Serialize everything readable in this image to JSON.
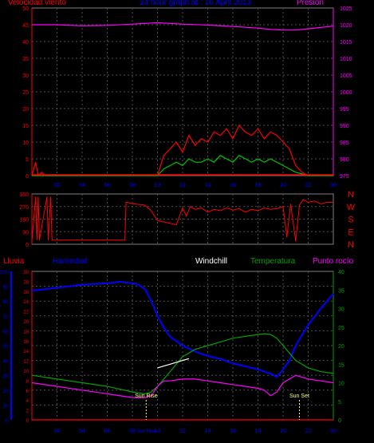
{
  "title": "24 hour graph at : 16 April 2013",
  "panel1": {
    "left_label": "Velocidad viento",
    "right_label": "Presión",
    "left_ticks": [
      "0",
      "5",
      "10",
      "15",
      "20",
      "25",
      "30",
      "35",
      "40",
      "45",
      "50"
    ],
    "right_ticks": [
      "975",
      "980",
      "985",
      "990",
      "995",
      "1000",
      "1005",
      "1010",
      "1015",
      "1020",
      "1025"
    ]
  },
  "panel2": {
    "left_ticks": [
      "0",
      "90",
      "180",
      "270",
      "360"
    ],
    "compass": [
      "N",
      "W",
      "S",
      "E",
      "N"
    ]
  },
  "panel3": {
    "lluvia_label": "Lluvia",
    "humedad_label": "Humedad",
    "windchill_label": "Windchill",
    "temperatura_label": "Temperatura",
    "punto_label": "Punto rocío",
    "hum_ticks": [
      "0",
      "10",
      "20",
      "30",
      "40",
      "50",
      "60",
      "70",
      "80",
      "90",
      "100"
    ],
    "rain_ticks": [
      "0",
      "2",
      "4",
      "6",
      "8",
      "10",
      "12",
      "14",
      "16",
      "18",
      "20",
      "22",
      "24",
      "26",
      "28",
      "30"
    ],
    "temp_ticks": [
      "0",
      "5",
      "10",
      "15",
      "20",
      "25",
      "30",
      "35",
      "40"
    ],
    "sunrise": "Sun Rise",
    "sunset": "Sun Set"
  },
  "x_ticks_top": [
    "02",
    "04",
    "06",
    "08",
    "10",
    "12",
    "14",
    "16",
    "18",
    "20",
    "22",
    "00"
  ],
  "x_ticks_bottom": [
    "02",
    "04",
    "06",
    "08",
    "10",
    "12",
    "14",
    "16",
    "18",
    "20",
    "22",
    "00"
  ],
  "x_tick_bottom_extra": "Sun Rise",
  "colors": {
    "wind": "#ff0000",
    "gust": "#00c000",
    "pressure": "#ff00ff",
    "direction": "#ff0000",
    "humidity": "#0000ff",
    "temperature": "#00a000",
    "windchill": "#ffffff",
    "dewpoint": "#ff00ff",
    "rain": "#ff0000",
    "left_axis": "#ff0000",
    "right_axis": "#ff00ff",
    "title": "#0000ff",
    "hum_axis": "#0000ff",
    "temp_axis": "#00a000",
    "sun": "#ffff80"
  },
  "chart_data": [
    {
      "type": "line",
      "xlim": [
        0,
        24
      ],
      "series": [
        {
          "name": "Velocidad viento",
          "axis": "left",
          "ylim": [
            0,
            50
          ],
          "x": [
            0,
            0.3,
            0.5,
            0.8,
            1.0,
            3,
            5,
            7,
            9,
            10.0,
            10.5,
            11.0,
            11.5,
            12,
            12.5,
            13,
            13.5,
            14,
            14.5,
            15,
            15.5,
            16,
            16.5,
            17,
            17.5,
            18,
            18.5,
            19,
            19.5,
            20,
            20.5,
            21,
            21.5,
            22,
            23,
            24
          ],
          "y": [
            0,
            4,
            0,
            1,
            0,
            0,
            0,
            0,
            0,
            0,
            6,
            8,
            10,
            7,
            12,
            9,
            11,
            10,
            13,
            12,
            14,
            11,
            15,
            13,
            12,
            14,
            11,
            13,
            12,
            10,
            8,
            3,
            1,
            0,
            0,
            0
          ]
        },
        {
          "name": "Racha",
          "axis": "left",
          "ylim": [
            0,
            50
          ],
          "x": [
            0,
            10,
            10.5,
            11,
            11.5,
            12,
            12.5,
            13,
            13.5,
            14,
            14.5,
            15,
            15.5,
            16,
            16.5,
            17,
            17.5,
            18,
            18.5,
            19,
            19.5,
            20,
            20.5,
            21,
            22,
            24
          ],
          "y": [
            0,
            0,
            2,
            3,
            4,
            3,
            5,
            4,
            4,
            5,
            4,
            6,
            5,
            4,
            6,
            5,
            4,
            5,
            4,
            5,
            4,
            3,
            2,
            1,
            0,
            0
          ]
        },
        {
          "name": "Presión",
          "axis": "right",
          "ylim": [
            975,
            1025
          ],
          "x": [
            0,
            2,
            4,
            6,
            8,
            10,
            12,
            14,
            16,
            18,
            19,
            20,
            21,
            22,
            23,
            24
          ],
          "y": [
            1020,
            1020,
            1019.7,
            1019.8,
            1020.2,
            1020.6,
            1020.2,
            1019.9,
            1019.5,
            1019.0,
            1018.6,
            1018.4,
            1018.4,
            1018.8,
            1019.2,
            1019.6
          ]
        }
      ]
    },
    {
      "type": "line",
      "ylim": [
        0,
        360
      ],
      "series": [
        {
          "name": "Dirección viento",
          "x": [
            0,
            0.3,
            0.4,
            0.5,
            0.6,
            1.2,
            1.3,
            1.5,
            1.6,
            2.0,
            3,
            5,
            7,
            7.4,
            7.5,
            7.6,
            8,
            9,
            9.5,
            10,
            10.5,
            11,
            11.5,
            12,
            12.3,
            12.6,
            13,
            13.5,
            14,
            14.5,
            15,
            15.5,
            16,
            16.5,
            17,
            17.5,
            18,
            18.5,
            19,
            19.5,
            20,
            20.3,
            20.6,
            21,
            21.3,
            21.6,
            22,
            22.5,
            23,
            23.5,
            24
          ],
          "y": [
            20,
            340,
            30,
            340,
            30,
            340,
            30,
            340,
            30,
            30,
            30,
            30,
            30,
            30,
            300,
            300,
            290,
            280,
            240,
            170,
            160,
            150,
            140,
            260,
            200,
            270,
            250,
            260,
            230,
            250,
            240,
            260,
            245,
            255,
            230,
            250,
            240,
            260,
            250,
            255,
            270,
            50,
            290,
            20,
            280,
            320,
            300,
            310,
            290,
            300,
            300
          ]
        }
      ]
    },
    {
      "type": "line",
      "xlim": [
        0,
        24
      ],
      "series": [
        {
          "name": "Humedad",
          "axis": "hum",
          "ylim": [
            0,
            100
          ],
          "x": [
            0,
            2,
            4,
            6,
            7,
            8,
            8.5,
            9,
            9.5,
            10,
            10.5,
            11,
            12,
            13,
            14,
            15,
            16,
            17,
            18,
            19,
            19.5,
            20,
            20.5,
            21,
            22,
            23,
            24
          ],
          "y": [
            87,
            89,
            91,
            92,
            93,
            92,
            91,
            88,
            80,
            70,
            62,
            56,
            50,
            46,
            43,
            41,
            38,
            36,
            34,
            31,
            29,
            34,
            40,
            50,
            64,
            75,
            85
          ]
        },
        {
          "name": "Temperatura",
          "axis": "temp",
          "ylim": [
            0,
            40
          ],
          "x": [
            0,
            2,
            4,
            6,
            8,
            9,
            9.5,
            10,
            10.5,
            11,
            12,
            13,
            14,
            15,
            16,
            17,
            18,
            18.5,
            19,
            19.5,
            20,
            20.5,
            21,
            22,
            23,
            24
          ],
          "y": [
            12,
            11,
            10,
            9,
            7.5,
            7,
            7.5,
            9,
            11,
            13,
            17,
            19,
            20,
            21,
            22,
            22.5,
            23,
            23.2,
            23,
            22,
            20,
            18,
            16,
            14,
            13,
            12.5
          ]
        },
        {
          "name": "Windchill",
          "axis": "temp",
          "ylim": [
            0,
            40
          ],
          "x": [
            10.0,
            10.5,
            11.0,
            11.5,
            12.0,
            12.5
          ],
          "y": [
            14,
            14.5,
            15,
            15.5,
            16,
            16.5
          ]
        },
        {
          "name": "Punto rocío",
          "axis": "temp",
          "ylim": [
            0,
            40
          ],
          "x": [
            0,
            2,
            4,
            6,
            8,
            9,
            9.5,
            10,
            10.5,
            11,
            12,
            13,
            14,
            15,
            16,
            17,
            18,
            18.5,
            19,
            19.5,
            20,
            20.5,
            21,
            22,
            23,
            24
          ],
          "y": [
            10,
            9,
            8,
            7,
            6,
            6,
            6.5,
            9,
            10.5,
            10.5,
            11,
            11,
            10.5,
            10,
            9.5,
            9,
            8.5,
            8,
            6.5,
            7.5,
            10,
            11,
            12,
            11,
            10.5,
            10
          ]
        },
        {
          "name": "Lluvia",
          "axis": "rain",
          "ylim": [
            0,
            30
          ],
          "x": [
            0,
            24
          ],
          "y": [
            0,
            0
          ]
        }
      ],
      "sunrise_x": 9.1,
      "sunset_x": 21.3
    }
  ]
}
